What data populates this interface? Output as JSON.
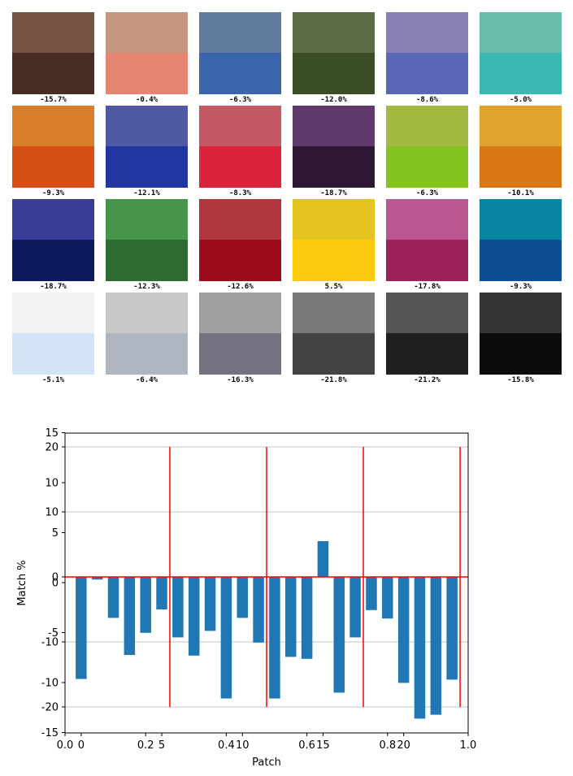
{
  "patches": [
    {
      "top": "#775444",
      "bottom": "#4a2d22",
      "label": "-15.7%"
    },
    {
      "top": "#c49580",
      "bottom": "#e68472",
      "label": "-0.4%"
    },
    {
      "top": "#627ca0",
      "bottom": "#3966ac",
      "label": "-6.3%"
    },
    {
      "top": "#5b6c45",
      "bottom": "#3a4d25",
      "label": "-12.0%"
    },
    {
      "top": "#8781b3",
      "bottom": "#5a67b6",
      "label": "-8.6%"
    },
    {
      "top": "#6bbdab",
      "bottom": "#3bb8b4",
      "label": "-5.0%"
    },
    {
      "top": "#d97f2c",
      "bottom": "#d54f17",
      "label": "-9.3%"
    },
    {
      "top": "#5059a3",
      "bottom": "#2137a0",
      "label": "-12.1%"
    },
    {
      "top": "#c35a63",
      "bottom": "#dc233e",
      "label": "-8.3%"
    },
    {
      "top": "#603a6c",
      "bottom": "#2e1733",
      "label": "-18.7%"
    },
    {
      "top": "#a2ba40",
      "bottom": "#85c31f",
      "label": "-6.3%"
    },
    {
      "top": "#e1a32f",
      "bottom": "#d97814",
      "label": "-10.1%"
    },
    {
      "top": "#3a3d97",
      "bottom": "#0b1a5a",
      "label": "-18.7%"
    },
    {
      "top": "#47954b",
      "bottom": "#2d6b31",
      "label": "-12.3%"
    },
    {
      "top": "#ae363c",
      "bottom": "#9b0b1c",
      "label": "-12.6%"
    },
    {
      "top": "#e6c420",
      "bottom": "#fdc90d",
      "label": "5.5%"
    },
    {
      "top": "#bb5692",
      "bottom": "#9c235a",
      "label": "-17.8%"
    },
    {
      "top": "#0a85a1",
      "bottom": "#0d4e91",
      "label": "-9.3%"
    },
    {
      "top": "#f2f2f2",
      "bottom": "#d3e3f8",
      "label": "-5.1%"
    },
    {
      "top": "#c8c8c8",
      "bottom": "#afb6bf",
      "label": "-6.4%"
    },
    {
      "top": "#a0a0a0",
      "bottom": "#737380",
      "label": "-16.3%"
    },
    {
      "top": "#7a7a79",
      "bottom": "#434341",
      "label": "-21.8%"
    },
    {
      "top": "#555555",
      "bottom": "#1e1f1f",
      "label": "-21.2%"
    },
    {
      "top": "#343434",
      "bottom": "#0b0c0c",
      "label": "-15.8%"
    }
  ],
  "chart_data": {
    "type": "bar",
    "x": [
      0,
      1,
      2,
      3,
      4,
      5,
      6,
      7,
      8,
      9,
      10,
      11,
      12,
      13,
      14,
      15,
      16,
      17,
      18,
      19,
      20,
      21,
      22,
      23
    ],
    "values": [
      -15.7,
      -0.4,
      -6.3,
      -12.0,
      -8.6,
      -5.0,
      -9.3,
      -12.1,
      -8.3,
      -18.7,
      -6.3,
      -10.1,
      -18.7,
      -12.3,
      -12.6,
      5.5,
      -17.8,
      -9.3,
      -5.1,
      -6.4,
      -16.3,
      -21.8,
      -21.2,
      -15.8
    ],
    "xlabel": "Patch",
    "ylabel": "Match %",
    "bar_color": "#1f77b4",
    "line_color": "#ff0000",
    "vlines_at": [
      5.5,
      11.5,
      17.5,
      23.5
    ],
    "vlines_range": [
      -20,
      20
    ],
    "hline_at": 0,
    "xlim": [
      -1,
      24
    ],
    "ylim_main": [
      -24,
      24
    ],
    "xticks_main": [
      0,
      5,
      10,
      15,
      20
    ],
    "xticks_frac": [
      "0.0",
      "0.2",
      "0.4",
      "0.6",
      "0.8",
      "1.0"
    ],
    "yticks_left_a": [
      -20,
      -10,
      0,
      10,
      20
    ],
    "yticks_left_b": [
      -15,
      -10,
      -5,
      0,
      5,
      10,
      15
    ],
    "grid_y": [
      -20,
      -10,
      10,
      20
    ]
  }
}
